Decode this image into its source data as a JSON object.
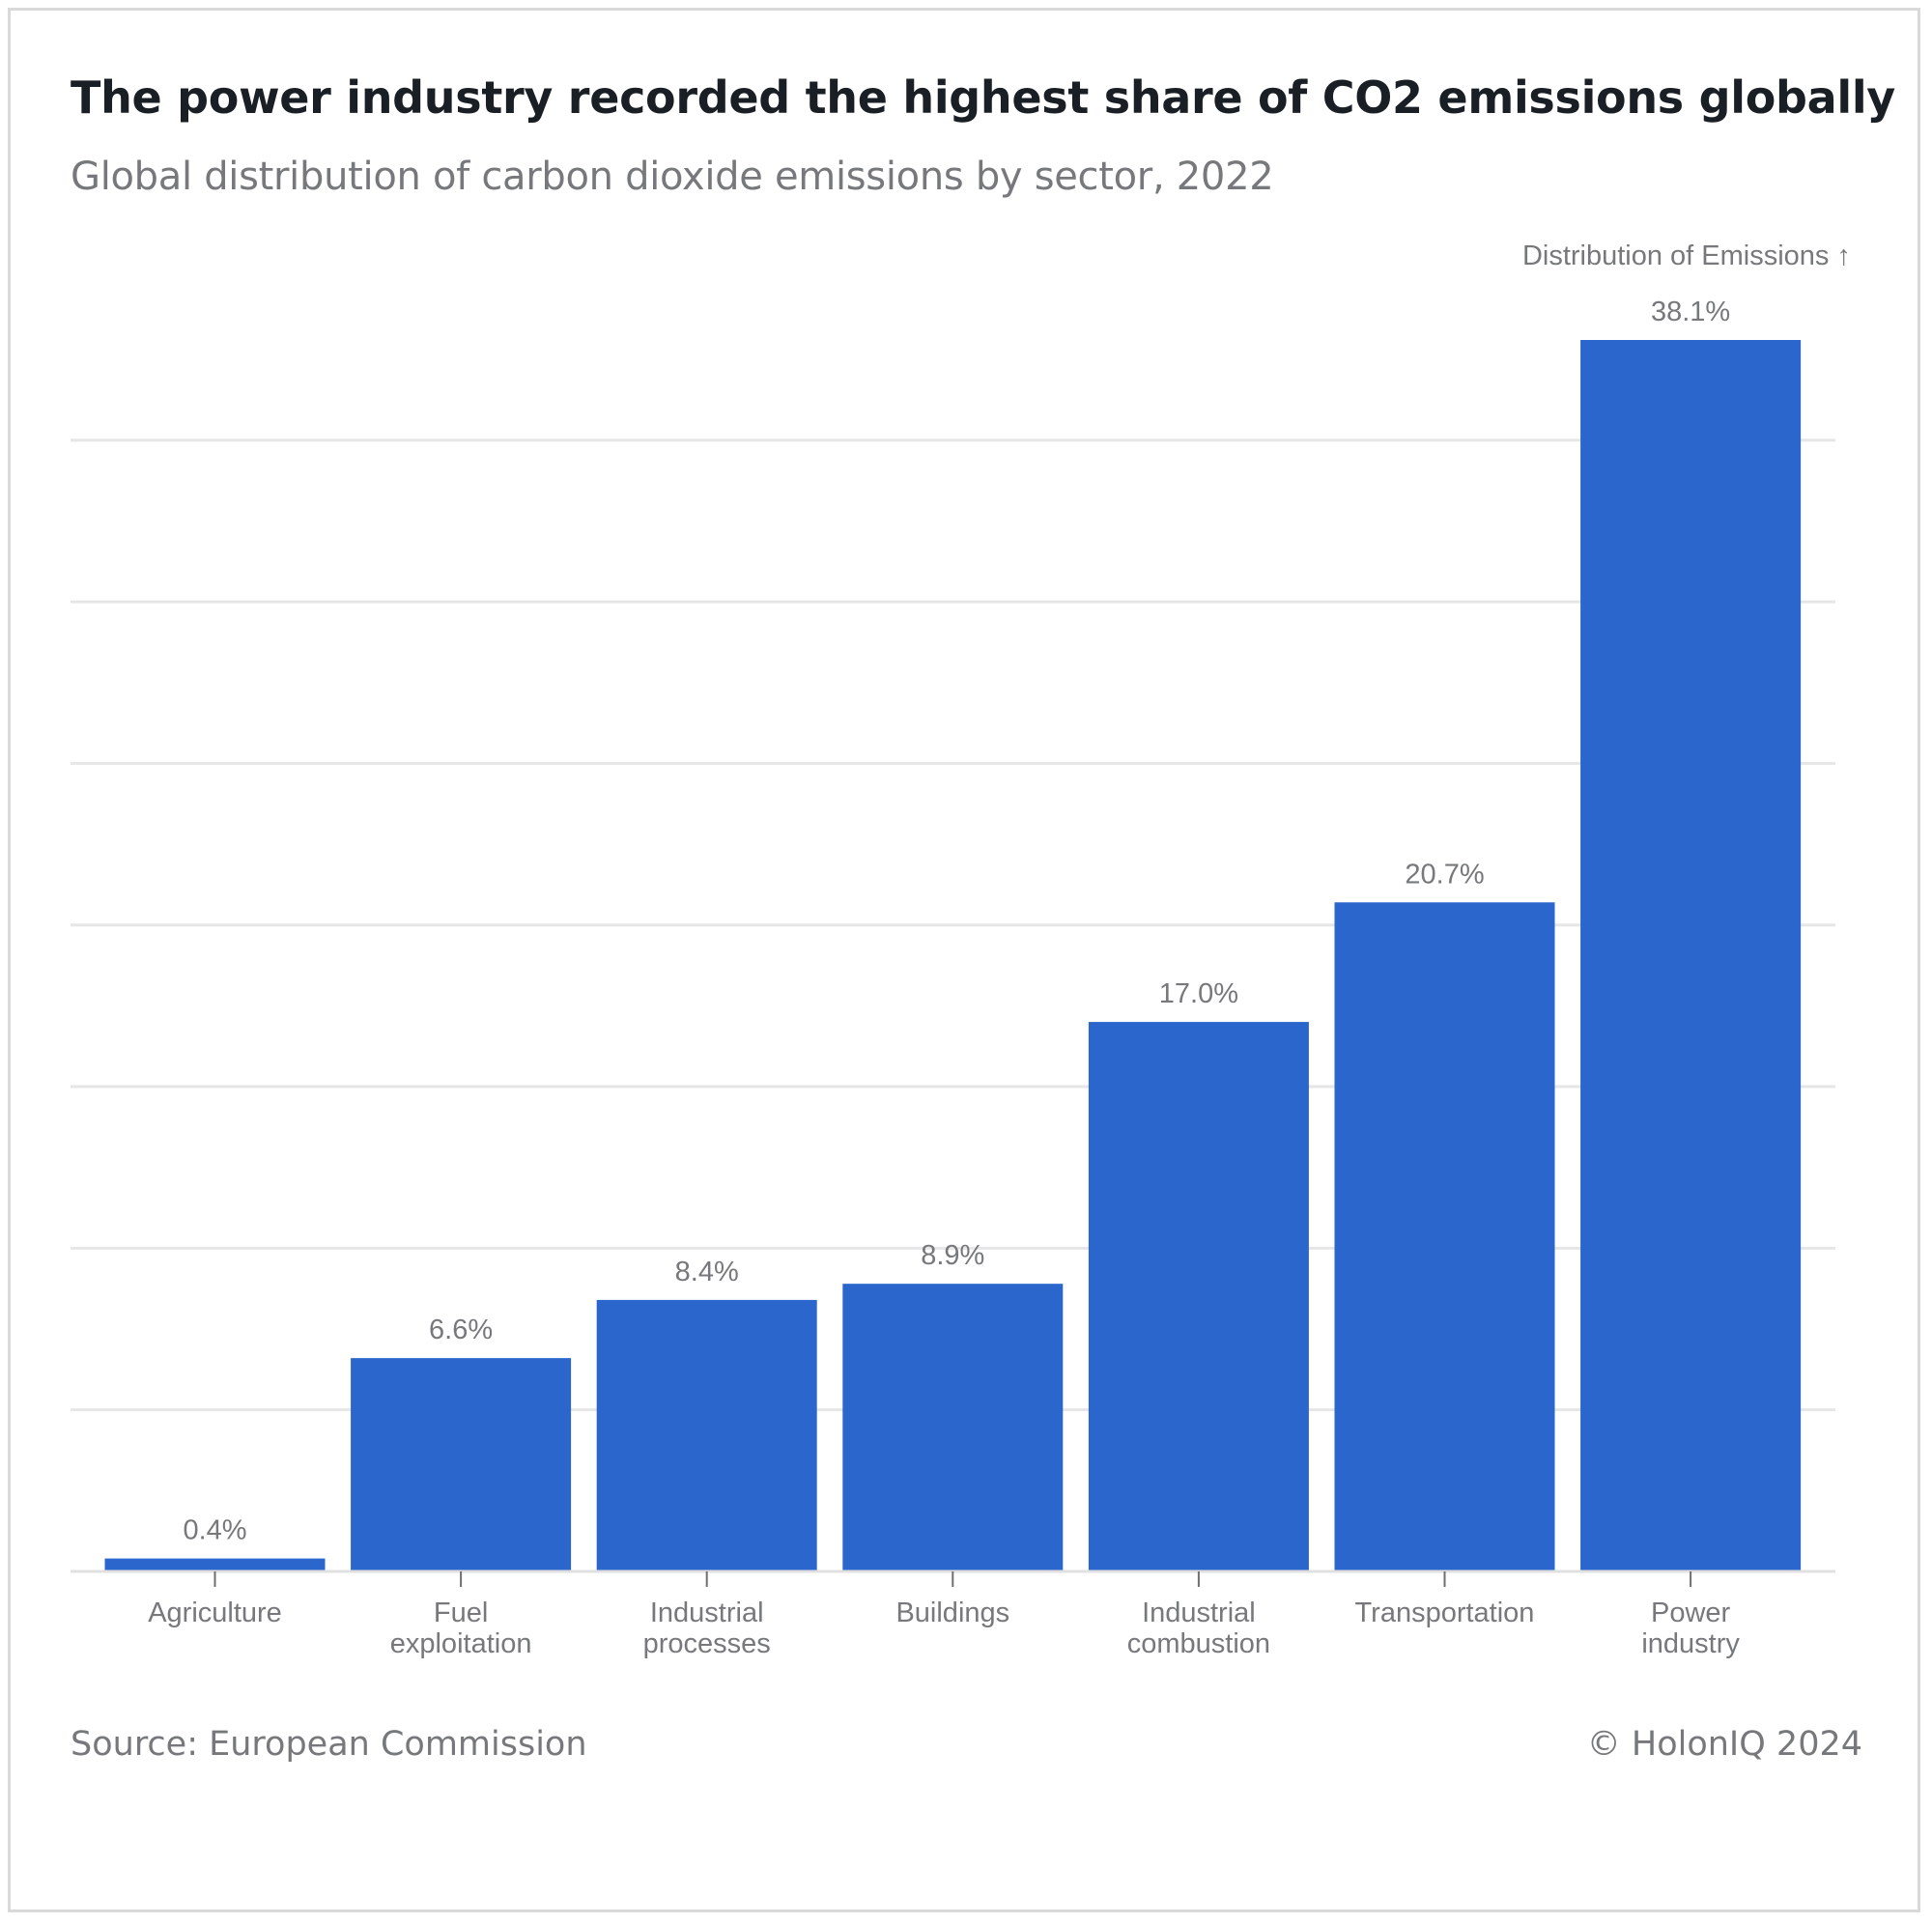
{
  "header": {
    "title": "The power industry recorded the highest share of CO2 emissions globally",
    "subtitle": "Global distribution of carbon dioxide emissions by sector, 2022"
  },
  "footer": {
    "source": "Source: European Commission",
    "copyright": "© HolonIQ 2024"
  },
  "colors": {
    "bar": "#2a66cc",
    "gridline": "#e6e6e6",
    "label_text": "#76787c",
    "title_text": "#1a1f26"
  },
  "chart_data": {
    "type": "bar",
    "title": "The power industry recorded the highest share of CO2 emissions globally",
    "subtitle": "Global distribution of carbon dioxide emissions by sector, 2022",
    "ylabel": "Distribution of Emissions ↑",
    "xlabel": "",
    "categories": [
      [
        "Agriculture"
      ],
      [
        "Fuel",
        "exploitation"
      ],
      [
        "Industrial",
        "processes"
      ],
      [
        "Buildings"
      ],
      [
        "Industrial",
        "combustion"
      ],
      [
        "Transportation"
      ],
      [
        "Power",
        "industry"
      ]
    ],
    "values": [
      0.4,
      6.6,
      8.4,
      8.9,
      17.0,
      20.7,
      38.1
    ],
    "data_labels": [
      "0.4%",
      "6.6%",
      "8.4%",
      "8.9%",
      "17.0%",
      "20.7%",
      "38.1%"
    ],
    "ylim": [
      0,
      38.1
    ],
    "y_gridlines": [
      5,
      10,
      15,
      20,
      25,
      30,
      35
    ],
    "y_tick_labels_shown": false,
    "grid": true,
    "legend": "none"
  }
}
